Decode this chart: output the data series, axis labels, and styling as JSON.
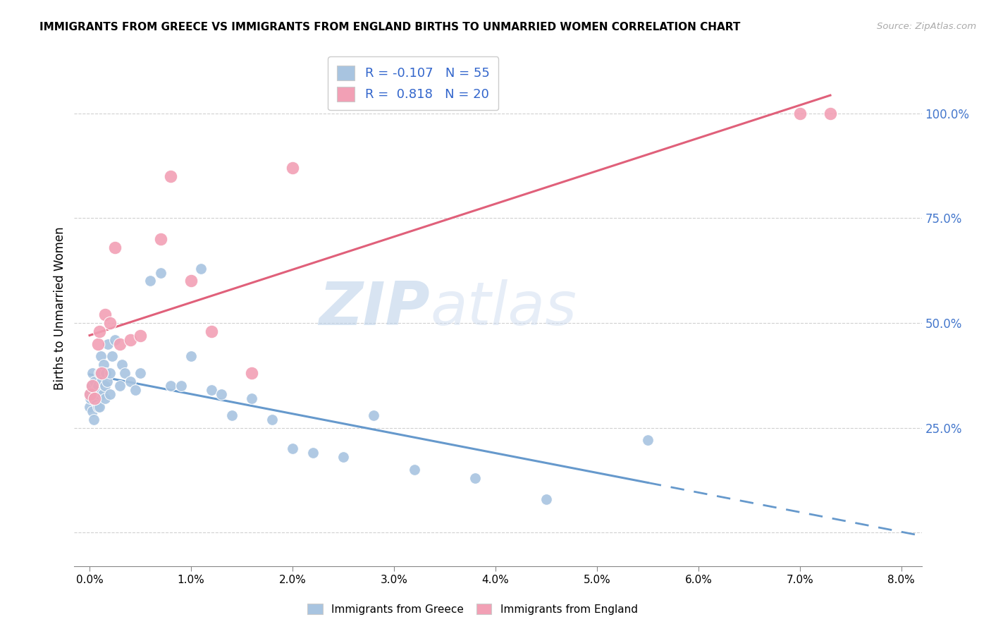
{
  "title": "IMMIGRANTS FROM GREECE VS IMMIGRANTS FROM ENGLAND BIRTHS TO UNMARRIED WOMEN CORRELATION CHART",
  "source": "Source: ZipAtlas.com",
  "ylabel": "Births to Unmarried Women",
  "yticks": [
    0.0,
    0.25,
    0.5,
    0.75,
    1.0
  ],
  "ytick_labels": [
    "",
    "25.0%",
    "50.0%",
    "75.0%",
    "100.0%"
  ],
  "legend_label1": "Immigrants from Greece",
  "legend_label2": "Immigrants from England",
  "r1": "-0.107",
  "n1": "55",
  "r2": "0.818",
  "n2": "20",
  "color_greece": "#a8c4e0",
  "color_england": "#f2a0b5",
  "watermark_zip": "ZIP",
  "watermark_atlas": "atlas",
  "trendline1_color": "#6699cc",
  "trendline2_color": "#e0607a",
  "greece_x": [
    0.0,
    0.0,
    0.0001,
    0.0002,
    0.0003,
    0.0003,
    0.0004,
    0.0004,
    0.0005,
    0.0005,
    0.0006,
    0.0007,
    0.0008,
    0.0008,
    0.0009,
    0.001,
    0.001,
    0.0011,
    0.0012,
    0.0013,
    0.0014,
    0.0015,
    0.0015,
    0.0016,
    0.0017,
    0.0018,
    0.002,
    0.002,
    0.0022,
    0.0025,
    0.003,
    0.0032,
    0.0035,
    0.004,
    0.0045,
    0.005,
    0.006,
    0.007,
    0.008,
    0.009,
    0.01,
    0.011,
    0.012,
    0.013,
    0.014,
    0.016,
    0.018,
    0.02,
    0.022,
    0.025,
    0.028,
    0.032,
    0.038,
    0.045,
    0.055
  ],
  "greece_y": [
    0.33,
    0.3,
    0.32,
    0.35,
    0.29,
    0.38,
    0.33,
    0.27,
    0.36,
    0.32,
    0.34,
    0.31,
    0.3,
    0.35,
    0.33,
    0.38,
    0.3,
    0.42,
    0.36,
    0.33,
    0.4,
    0.35,
    0.32,
    0.38,
    0.36,
    0.45,
    0.38,
    0.33,
    0.42,
    0.46,
    0.35,
    0.4,
    0.38,
    0.36,
    0.34,
    0.38,
    0.6,
    0.62,
    0.35,
    0.35,
    0.42,
    0.63,
    0.34,
    0.33,
    0.28,
    0.32,
    0.27,
    0.2,
    0.19,
    0.18,
    0.28,
    0.15,
    0.13,
    0.08,
    0.22
  ],
  "england_x": [
    0.0001,
    0.0003,
    0.0005,
    0.0008,
    0.001,
    0.0012,
    0.0015,
    0.002,
    0.0025,
    0.003,
    0.004,
    0.005,
    0.007,
    0.008,
    0.01,
    0.012,
    0.016,
    0.02,
    0.07,
    0.073
  ],
  "england_y": [
    0.33,
    0.35,
    0.32,
    0.45,
    0.48,
    0.38,
    0.52,
    0.5,
    0.68,
    0.45,
    0.46,
    0.47,
    0.7,
    0.85,
    0.6,
    0.48,
    0.38,
    0.87,
    1.0,
    1.0
  ],
  "xlim": [
    -0.0015,
    0.082
  ],
  "ylim": [
    -0.08,
    1.15
  ]
}
